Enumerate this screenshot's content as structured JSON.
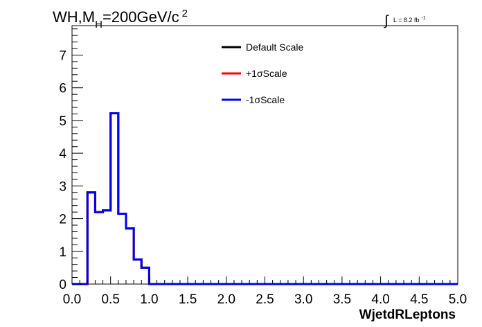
{
  "title": {
    "main": "WH,M",
    "sub": "H",
    "rest": "=200GeV/c",
    "sup": "2"
  },
  "lumi": {
    "integral": "∫",
    "text": "L = 8.2 fb",
    "sup": "-1"
  },
  "chart_data": {
    "type": "line",
    "xlabel": "WjetdRLeptons",
    "ylabel": "",
    "xlim": [
      0,
      5
    ],
    "ylim": [
      0,
      7.9
    ],
    "xticks": [
      "0.0",
      "0.5",
      "1.0",
      "1.5",
      "2.0",
      "2.5",
      "3.0",
      "3.5",
      "4.0",
      "4.5",
      "5.0"
    ],
    "yticks": [
      "0",
      "1",
      "2",
      "3",
      "4",
      "5",
      "6",
      "7"
    ],
    "bin_edges": [
      0.0,
      0.1,
      0.2,
      0.3,
      0.4,
      0.5,
      0.6,
      0.7,
      0.8,
      0.9,
      1.0,
      1.1,
      1.2,
      1.3,
      1.4,
      1.5,
      1.6,
      1.7,
      1.8,
      1.9,
      2.0,
      2.1,
      2.2,
      2.3,
      2.4,
      2.5,
      2.6,
      2.7,
      2.8,
      2.9,
      3.0,
      3.1,
      3.2,
      3.3,
      3.4,
      3.5,
      3.6,
      3.7,
      3.8,
      3.9,
      4.0,
      4.1,
      4.2,
      4.3,
      4.4,
      4.5,
      4.6,
      4.7,
      4.8,
      4.9,
      5.0
    ],
    "legend_position": "top-center",
    "series": [
      {
        "name": "Default Scale",
        "color": "#000000",
        "values": [
          0,
          0,
          2.8,
          2.2,
          2.25,
          5.22,
          2.15,
          1.7,
          0.75,
          0.5,
          0,
          0,
          0,
          0,
          0,
          0,
          0,
          0,
          0,
          0,
          0,
          0,
          0,
          0,
          0,
          0,
          0,
          0,
          0,
          0,
          0,
          0,
          0,
          0,
          0,
          0,
          0,
          0,
          0,
          0,
          0,
          0,
          0,
          0,
          0,
          0,
          0,
          0,
          0,
          0
        ]
      },
      {
        "name": "+1σScale",
        "color": "#ff0000",
        "values": [
          0,
          0,
          2.8,
          2.2,
          2.25,
          5.22,
          2.15,
          1.7,
          0.75,
          0.5,
          0,
          0,
          0,
          0,
          0,
          0,
          0,
          0,
          0,
          0,
          0,
          0,
          0,
          0,
          0,
          0,
          0,
          0,
          0,
          0,
          0,
          0,
          0,
          0,
          0,
          0,
          0,
          0,
          0,
          0,
          0,
          0,
          0,
          0,
          0,
          0,
          0,
          0,
          0,
          0
        ]
      },
      {
        "name": "-1σScale",
        "color": "#0000ee",
        "values": [
          0,
          0,
          2.8,
          2.2,
          2.25,
          5.22,
          2.15,
          1.7,
          0.75,
          0.5,
          0,
          0,
          0,
          0,
          0,
          0,
          0,
          0,
          0,
          0,
          0,
          0,
          0,
          0,
          0,
          0,
          0,
          0,
          0,
          0,
          0,
          0,
          0,
          0,
          0,
          0,
          0,
          0,
          0,
          0,
          0,
          0,
          0,
          0,
          0,
          0,
          0,
          0,
          0,
          0
        ]
      }
    ]
  }
}
